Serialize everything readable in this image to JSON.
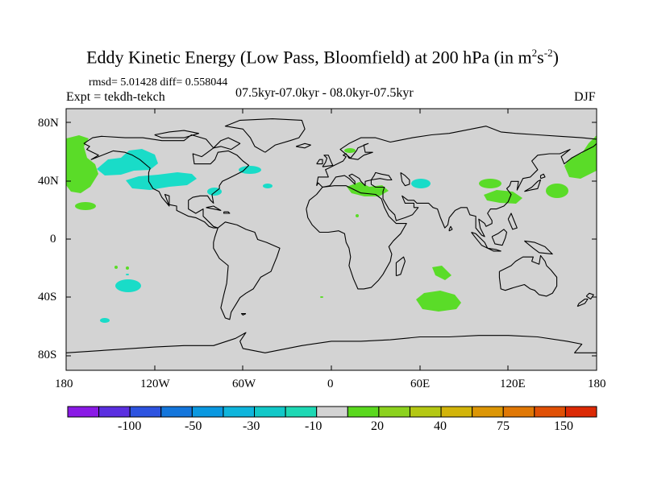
{
  "title": {
    "main": "Eddy Kinetic Energy (Low Pass, Bloomfield) at 200 hPa (in m",
    "sup1": "2",
    "mid": "s",
    "sup2": "-2",
    "close": ")"
  },
  "stats": "rmsd= 5.01428 diff= 0.558044",
  "experiment": "Expt = tekdh-tekch",
  "period": "07.5kyr-07.0kyr - 08.0kyr-07.5kyr",
  "season": "DJF",
  "map": {
    "projection": "cylindrical-equidistant",
    "lon_range": [
      -180,
      180
    ],
    "lat_range": [
      -90,
      90
    ],
    "lat_labels": [
      "80N",
      "40N",
      "0",
      "40S",
      "80S"
    ],
    "lon_labels": [
      "180",
      "120W",
      "60W",
      "0",
      "60E",
      "120E",
      "180"
    ],
    "background_color": "#d3d3d3",
    "coast_color": "#000000"
  },
  "colorbar": {
    "labels": [
      "-100",
      "-50",
      "-30",
      "-10",
      "20",
      "40",
      "75",
      "150"
    ],
    "colors": [
      "#8a1ae6",
      "#5b2fe0",
      "#2d53e0",
      "#1476dc",
      "#0a98e0",
      "#0fb5dc",
      "#12c8c8",
      "#1ed8b4",
      "#d3d3d3",
      "#5ad81e",
      "#8cd21e",
      "#b4c814",
      "#d2b40a",
      "#dc9605",
      "#e07805",
      "#e05005",
      "#dc2a05"
    ]
  },
  "field": {
    "negative_color": "#19dcc8",
    "positive_color": "#5adc28"
  }
}
